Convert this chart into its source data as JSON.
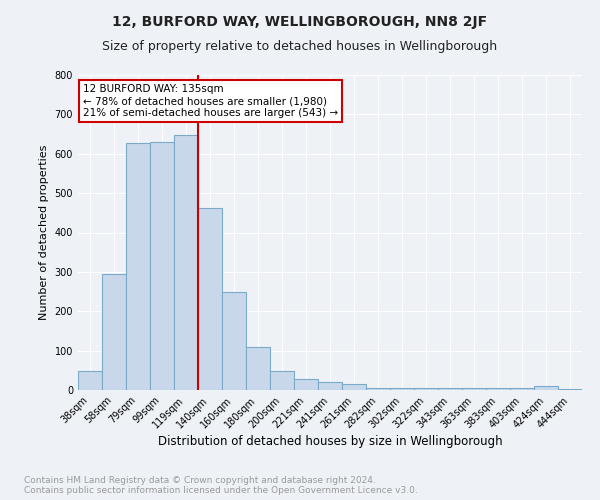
{
  "title": "12, BURFORD WAY, WELLINGBOROUGH, NN8 2JF",
  "subtitle": "Size of property relative to detached houses in Wellingborough",
  "xlabel": "Distribution of detached houses by size in Wellingborough",
  "ylabel": "Number of detached properties",
  "categories": [
    "38sqm",
    "58sqm",
    "79sqm",
    "99sqm",
    "119sqm",
    "140sqm",
    "160sqm",
    "180sqm",
    "200sqm",
    "221sqm",
    "241sqm",
    "261sqm",
    "282sqm",
    "302sqm",
    "322sqm",
    "343sqm",
    "363sqm",
    "383sqm",
    "403sqm",
    "424sqm",
    "444sqm"
  ],
  "values": [
    47,
    294,
    627,
    630,
    648,
    462,
    250,
    110,
    49,
    27,
    20,
    14,
    6,
    5,
    5,
    5,
    5,
    5,
    5,
    10,
    2
  ],
  "bar_color": "#c8d8ea",
  "bar_edge_color": "#7aaac8",
  "vline_color": "#cc0000",
  "annotation_text": "12 BURFORD WAY: 135sqm\n← 78% of detached houses are smaller (1,980)\n21% of semi-detached houses are larger (543) →",
  "annotation_box_color": "#ffffff",
  "annotation_box_edge_color": "#cc0000",
  "ylim": [
    0,
    800
  ],
  "yticks": [
    0,
    100,
    200,
    300,
    400,
    500,
    600,
    700,
    800
  ],
  "footer_text": "Contains HM Land Registry data © Crown copyright and database right 2024.\nContains public sector information licensed under the Open Government Licence v3.0.",
  "background_color": "#eef2f7",
  "plot_bg_color": "#eef2f7",
  "grid_color": "#ffffff",
  "title_fontsize": 10,
  "subtitle_fontsize": 9,
  "footer_fontsize": 6.5,
  "tick_fontsize": 7,
  "ylabel_fontsize": 8,
  "xlabel_fontsize": 8.5
}
